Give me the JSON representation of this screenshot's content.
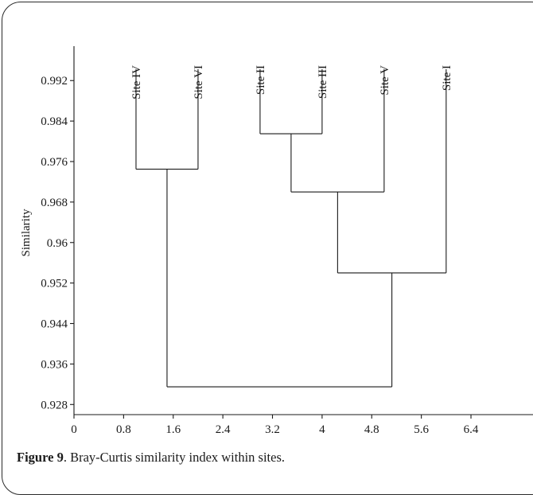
{
  "caption": {
    "label": "Figure 9",
    "text": ". Bray-Curtis similarity index within sites."
  },
  "chart_data": {
    "type": "dendrogram",
    "title": "",
    "xlabel": "",
    "ylabel": "Similarity",
    "xlim": [
      0,
      7.4
    ],
    "ylim": [
      0.926,
      1.001
    ],
    "x_ticks": [
      "0",
      "0.8",
      "1.6",
      "2.4",
      "3.2",
      "4",
      "4.8",
      "5.6",
      "6.4"
    ],
    "y_ticks": [
      "0.992",
      "0.984",
      "0.976",
      "0.968",
      "0.96",
      "0.952",
      "0.944",
      "0.936",
      "0.928"
    ],
    "leaves": [
      {
        "label": "Site IV",
        "x": 1.0
      },
      {
        "label": "Site VI",
        "x": 2.0
      },
      {
        "label": "Site II",
        "x": 3.0
      },
      {
        "label": "Site III",
        "x": 4.0
      },
      {
        "label": "Site V",
        "x": 5.0
      },
      {
        "label": "Site I",
        "x": 6.0
      }
    ],
    "merges": [
      {
        "members": [
          "Site II",
          "Site III"
        ],
        "similarity": 0.9815
      },
      {
        "members": [
          "Site IV",
          "Site VI"
        ],
        "similarity": 0.9745
      },
      {
        "members": [
          "Site II",
          "Site III",
          "Site V"
        ],
        "similarity": 0.97
      },
      {
        "members": [
          "Site II",
          "Site III",
          "Site V",
          "Site I"
        ],
        "similarity": 0.954
      },
      {
        "members": [
          "Site IV",
          "Site VI",
          "Site II",
          "Site III",
          "Site V",
          "Site I"
        ],
        "similarity": 0.9315
      }
    ]
  }
}
